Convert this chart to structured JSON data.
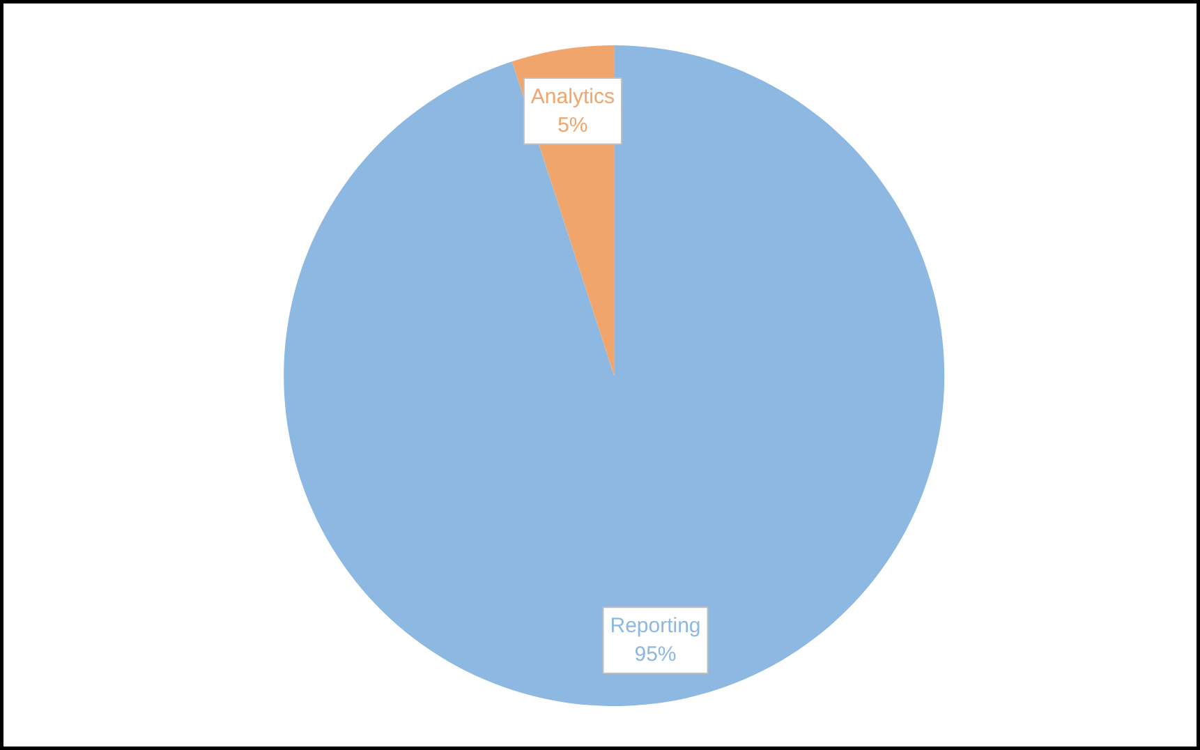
{
  "chart_data": {
    "type": "pie",
    "categories": [
      "Reporting",
      "Analytics"
    ],
    "values": [
      95,
      5
    ],
    "colors": [
      "#8cb8e2",
      "#f0a56c"
    ],
    "value_labels": [
      "95%",
      "5%"
    ]
  }
}
